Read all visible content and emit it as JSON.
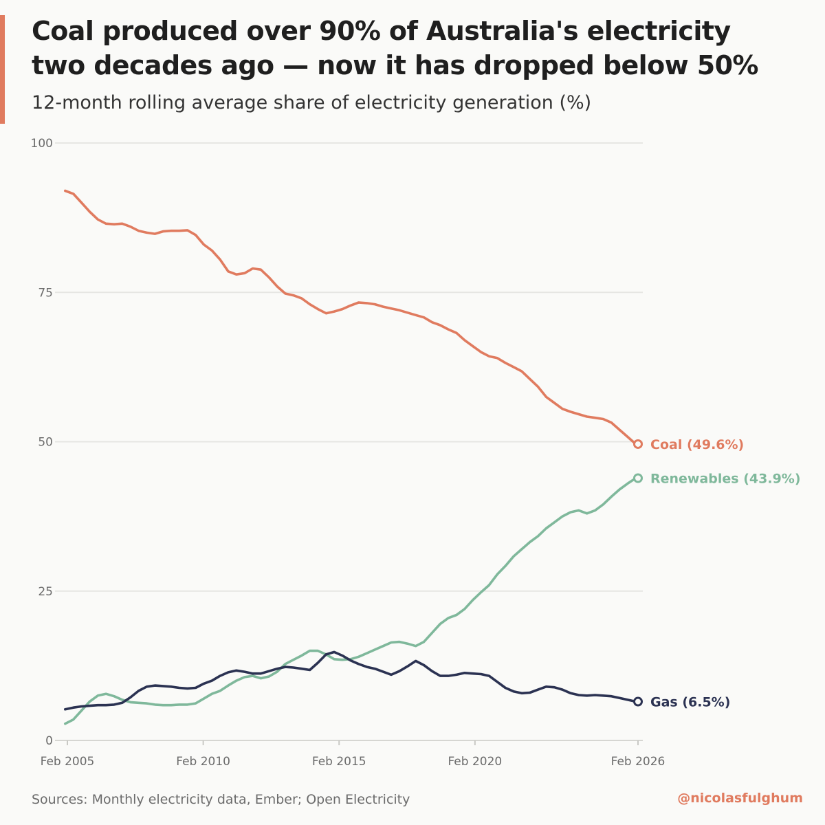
{
  "colors": {
    "accent": "#e07b5f",
    "coal": "#e07b5f",
    "renewables": "#7fb89b",
    "gas": "#2b3252",
    "grid": "#e6e6e3",
    "tick_text": "#6b6b6b"
  },
  "chart_data": {
    "type": "line",
    "title": "Coal produced over 90% of Australia's electricity two decades ago — now it has dropped below 50%",
    "title_lines": [
      "Coal produced over 90% of Australia's electricity",
      "two decades ago — now it has dropped below 50%"
    ],
    "subtitle": "12-month rolling average share of electricity generation (%)",
    "xlabel": "",
    "ylabel": "",
    "xlim": [
      2005.08,
      2026.08
    ],
    "ylim": [
      0,
      100
    ],
    "y_ticks": [
      0,
      25,
      50,
      75,
      100
    ],
    "y_tick_labels": [
      "0",
      "25",
      "50",
      "75",
      "100"
    ],
    "x_ticks": [
      2005.08,
      2010.08,
      2015.08,
      2020.08,
      2026.08
    ],
    "x_tick_labels": [
      "Feb 2005",
      "Feb 2010",
      "Feb 2015",
      "Feb 2020",
      "Feb 2026"
    ],
    "grid": true,
    "legend": "direct labels at line ends (right)",
    "series": [
      {
        "name": "Coal",
        "end_label": "Coal (49.6%)",
        "x": [
          2005.0,
          2005.3,
          2005.6,
          2005.9,
          2006.2,
          2006.5,
          2006.8,
          2007.1,
          2007.4,
          2007.7,
          2008.0,
          2008.3,
          2008.6,
          2008.9,
          2009.2,
          2009.5,
          2009.8,
          2010.1,
          2010.4,
          2010.7,
          2011.0,
          2011.3,
          2011.6,
          2011.9,
          2012.2,
          2012.5,
          2012.8,
          2013.1,
          2013.4,
          2013.7,
          2014.0,
          2014.3,
          2014.6,
          2014.9,
          2015.2,
          2015.5,
          2015.8,
          2016.1,
          2016.4,
          2016.7,
          2017.0,
          2017.3,
          2017.6,
          2017.9,
          2018.2,
          2018.5,
          2018.8,
          2019.1,
          2019.4,
          2019.7,
          2020.0,
          2020.3,
          2020.6,
          2020.9,
          2021.2,
          2021.5,
          2021.8,
          2022.1,
          2022.4,
          2022.7,
          2023.0,
          2023.3,
          2023.6,
          2023.9,
          2024.2,
          2024.5,
          2024.8,
          2025.1,
          2025.4,
          2025.7,
          2026.0
        ],
        "values": [
          92.0,
          91.5,
          90.0,
          88.5,
          87.2,
          86.5,
          86.4,
          86.5,
          86.0,
          85.3,
          85.0,
          84.8,
          85.2,
          85.3,
          85.3,
          85.4,
          84.6,
          83.0,
          82.0,
          80.5,
          78.5,
          78.0,
          78.2,
          79.0,
          78.8,
          77.5,
          76.0,
          74.8,
          74.5,
          74.0,
          73.0,
          72.2,
          71.5,
          71.8,
          72.2,
          72.8,
          73.3,
          73.2,
          73.0,
          72.6,
          72.3,
          72.0,
          71.6,
          71.2,
          70.8,
          70.0,
          69.5,
          68.8,
          68.2,
          67.0,
          66.0,
          65.0,
          64.3,
          64.0,
          63.2,
          62.5,
          61.8,
          60.5,
          59.2,
          57.5,
          56.5,
          55.5,
          55.0,
          54.6,
          54.2,
          54.0,
          53.8,
          53.2,
          52.0,
          50.8,
          49.6
        ]
      },
      {
        "name": "Renewables",
        "end_label": "Renewables (43.9%)",
        "x": [
          2005.0,
          2005.3,
          2005.6,
          2005.9,
          2006.2,
          2006.5,
          2006.8,
          2007.1,
          2007.4,
          2007.7,
          2008.0,
          2008.3,
          2008.6,
          2008.9,
          2009.2,
          2009.5,
          2009.8,
          2010.1,
          2010.4,
          2010.7,
          2011.0,
          2011.3,
          2011.6,
          2011.9,
          2012.2,
          2012.5,
          2012.8,
          2013.1,
          2013.4,
          2013.7,
          2014.0,
          2014.3,
          2014.6,
          2014.9,
          2015.2,
          2015.5,
          2015.8,
          2016.1,
          2016.4,
          2016.7,
          2017.0,
          2017.3,
          2017.6,
          2017.9,
          2018.2,
          2018.5,
          2018.8,
          2019.1,
          2019.4,
          2019.7,
          2020.0,
          2020.3,
          2020.6,
          2020.9,
          2021.2,
          2021.5,
          2021.8,
          2022.1,
          2022.4,
          2022.7,
          2023.0,
          2023.3,
          2023.6,
          2023.9,
          2024.2,
          2024.5,
          2024.8,
          2025.1,
          2025.4,
          2025.7,
          2026.0
        ],
        "values": [
          2.8,
          3.5,
          5.0,
          6.5,
          7.5,
          7.8,
          7.4,
          6.8,
          6.4,
          6.3,
          6.2,
          6.0,
          5.9,
          5.9,
          6.0,
          6.0,
          6.2,
          7.0,
          7.8,
          8.3,
          9.2,
          10.0,
          10.6,
          10.8,
          10.4,
          10.7,
          11.5,
          12.8,
          13.5,
          14.2,
          15.0,
          15.0,
          14.4,
          13.6,
          13.5,
          13.6,
          14.0,
          14.6,
          15.2,
          15.8,
          16.4,
          16.5,
          16.2,
          15.8,
          16.5,
          18.0,
          19.5,
          20.5,
          21.0,
          22.0,
          23.5,
          24.8,
          26.0,
          27.8,
          29.2,
          30.8,
          32.0,
          33.2,
          34.2,
          35.5,
          36.5,
          37.5,
          38.2,
          38.5,
          38.0,
          38.5,
          39.5,
          40.8,
          42.0,
          43.0,
          43.9
        ]
      },
      {
        "name": "Gas",
        "end_label": "Gas (6.5%)",
        "x": [
          2005.0,
          2005.3,
          2005.6,
          2005.9,
          2006.2,
          2006.5,
          2006.8,
          2007.1,
          2007.4,
          2007.7,
          2008.0,
          2008.3,
          2008.6,
          2008.9,
          2009.2,
          2009.5,
          2009.8,
          2010.1,
          2010.4,
          2010.7,
          2011.0,
          2011.3,
          2011.6,
          2011.9,
          2012.2,
          2012.5,
          2012.8,
          2013.1,
          2013.4,
          2013.7,
          2014.0,
          2014.3,
          2014.6,
          2014.9,
          2015.2,
          2015.5,
          2015.8,
          2016.1,
          2016.4,
          2016.7,
          2017.0,
          2017.3,
          2017.6,
          2017.9,
          2018.2,
          2018.5,
          2018.8,
          2019.1,
          2019.4,
          2019.7,
          2020.0,
          2020.3,
          2020.6,
          2020.9,
          2021.2,
          2021.5,
          2021.8,
          2022.1,
          2022.4,
          2022.7,
          2023.0,
          2023.3,
          2023.6,
          2023.9,
          2024.2,
          2024.5,
          2024.8,
          2025.1,
          2025.4,
          2025.7,
          2026.0
        ],
        "values": [
          5.2,
          5.5,
          5.7,
          5.8,
          5.9,
          5.9,
          6.0,
          6.3,
          7.2,
          8.3,
          9.0,
          9.2,
          9.1,
          9.0,
          8.8,
          8.7,
          8.8,
          9.5,
          10.0,
          10.8,
          11.4,
          11.7,
          11.5,
          11.2,
          11.2,
          11.6,
          12.0,
          12.3,
          12.2,
          12.0,
          11.8,
          13.0,
          14.4,
          14.8,
          14.2,
          13.4,
          12.8,
          12.3,
          12.0,
          11.5,
          11.0,
          11.6,
          12.4,
          13.3,
          12.6,
          11.6,
          10.8,
          10.8,
          11.0,
          11.3,
          11.2,
          11.1,
          10.8,
          9.8,
          8.8,
          8.2,
          7.9,
          8.0,
          8.5,
          9.0,
          8.9,
          8.5,
          7.9,
          7.6,
          7.5,
          7.6,
          7.5,
          7.4,
          7.1,
          6.8,
          6.5
        ]
      }
    ]
  },
  "footer": {
    "source": "Sources: Monthly electricity data, Ember; Open Electricity",
    "credit": "@nicolasfulghum"
  }
}
